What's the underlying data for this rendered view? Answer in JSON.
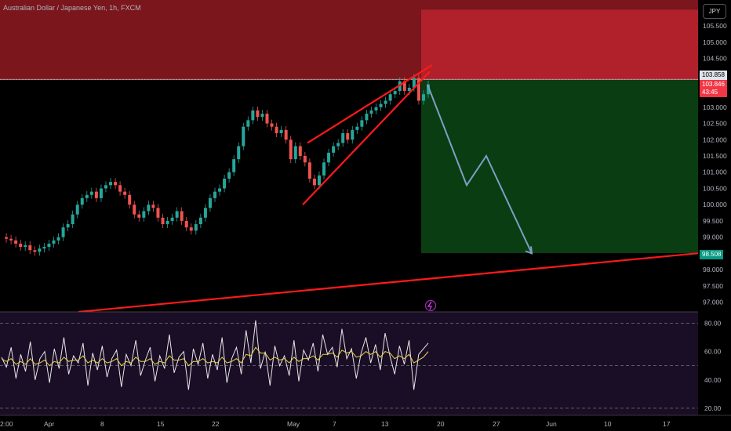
{
  "header": {
    "title": "Australian Dollar / Japanese Yen, 1h, FXCM",
    "currency": "JPY"
  },
  "tags": {
    "upper": "103.858",
    "price": "103.846",
    "countdown": "43:45",
    "target": "98.508"
  },
  "colors": {
    "stop_zone": "#a31d26",
    "target_zone": "#0b3d12",
    "trendline": "#ff1a1a",
    "projection": "#7f9fc6",
    "rsi_bg": "#1a0d26",
    "candle_up": "#26a69a",
    "candle_down": "#ef5350"
  },
  "chart_data": {
    "type": "line",
    "price": {
      "y_ticks": [
        "105.500",
        "105.000",
        "104.500",
        "103.000",
        "102.500",
        "102.000",
        "101.500",
        "101.000",
        "100.500",
        "100.000",
        "99.500",
        "99.000",
        "98.000",
        "97.500",
        "97.000"
      ],
      "ylim": [
        96.7,
        106.3
      ],
      "close": [
        99.0,
        98.95,
        98.9,
        98.8,
        98.7,
        98.75,
        98.6,
        98.55,
        98.65,
        98.7,
        98.8,
        98.9,
        99.0,
        99.3,
        99.4,
        99.7,
        100.0,
        100.2,
        100.3,
        100.4,
        100.2,
        100.5,
        100.6,
        100.7,
        100.6,
        100.4,
        100.3,
        100.0,
        99.7,
        99.6,
        99.8,
        100.0,
        99.9,
        99.6,
        99.4,
        99.5,
        99.6,
        99.8,
        99.5,
        99.3,
        99.2,
        99.4,
        99.6,
        99.9,
        100.2,
        100.4,
        100.5,
        100.8,
        101.0,
        101.4,
        101.8,
        102.4,
        102.6,
        102.9,
        102.7,
        102.8,
        102.5,
        102.4,
        102.2,
        102.3,
        102.0,
        101.4,
        101.8,
        101.5,
        101.3,
        100.8,
        100.6,
        100.9,
        101.3,
        101.6,
        101.8,
        101.9,
        102.2,
        102.0,
        102.3,
        102.4,
        102.6,
        102.8,
        102.9,
        103.0,
        103.1,
        103.2,
        103.4,
        103.5,
        103.8,
        103.5,
        103.6,
        103.9,
        103.2,
        103.4,
        103.7
      ],
      "zones": {
        "stop_top": 106.0,
        "stop_bottom": 103.858,
        "entry": 103.846,
        "target": 98.508
      },
      "wedge": {
        "upper": [
          [
            392,
            101.9
          ],
          [
            551,
            104.3
          ]
        ],
        "lower": [
          [
            386,
            100.0
          ],
          [
            548,
            104.1
          ]
        ]
      },
      "trendline": [
        [
          100,
          96.7
        ],
        [
          932,
          98.6
        ]
      ],
      "projection": [
        [
          545,
          103.7
        ],
        [
          595,
          100.6
        ],
        [
          620,
          101.5
        ],
        [
          678,
          98.5
        ]
      ]
    },
    "rsi": {
      "y_ticks": [
        "80.00",
        "60.00",
        "40.00",
        "20.00"
      ],
      "ylim": [
        15,
        88
      ],
      "levels": [
        80,
        50,
        20
      ],
      "values": [
        56,
        49,
        63,
        41,
        58,
        46,
        67,
        40,
        55,
        60,
        38,
        62,
        48,
        70,
        44,
        57,
        52,
        66,
        36,
        59,
        47,
        64,
        42,
        55,
        61,
        35,
        58,
        50,
        68,
        43,
        54,
        63,
        39,
        57,
        48,
        72,
        45,
        56,
        60,
        33,
        62,
        51,
        66,
        41,
        58,
        47,
        70,
        38,
        55,
        63,
        44,
        75,
        52,
        82,
        48,
        60,
        36,
        64,
        50,
        57,
        43,
        68,
        39,
        61,
        54,
        66,
        46,
        72,
        58,
        63,
        49,
        76,
        55,
        62,
        41,
        59,
        70,
        52,
        65,
        47,
        73,
        57,
        44,
        64,
        51,
        68,
        33,
        58,
        62,
        66
      ],
      "signal": [
        55,
        53,
        55,
        51,
        53,
        51,
        55,
        51,
        52,
        54,
        50,
        53,
        52,
        56,
        53,
        54,
        54,
        57,
        52,
        54,
        52,
        55,
        52,
        53,
        55,
        50,
        53,
        52,
        56,
        53,
        53,
        55,
        51,
        53,
        52,
        57,
        54,
        54,
        55,
        50,
        53,
        53,
        55,
        52,
        53,
        52,
        56,
        52,
        53,
        55,
        52,
        58,
        57,
        63,
        59,
        59,
        54,
        56,
        54,
        55,
        52,
        56,
        53,
        55,
        55,
        57,
        54,
        58,
        58,
        59,
        56,
        61,
        59,
        60,
        56,
        57,
        60,
        58,
        60,
        56,
        60,
        59,
        55,
        57,
        55,
        58,
        52,
        54,
        56,
        60
      ]
    },
    "x_ticks": [
      "2:00",
      "Apr",
      "8",
      "15",
      "22",
      "May",
      "7",
      "13",
      "20",
      "27",
      "Jun",
      "10",
      "17"
    ]
  }
}
